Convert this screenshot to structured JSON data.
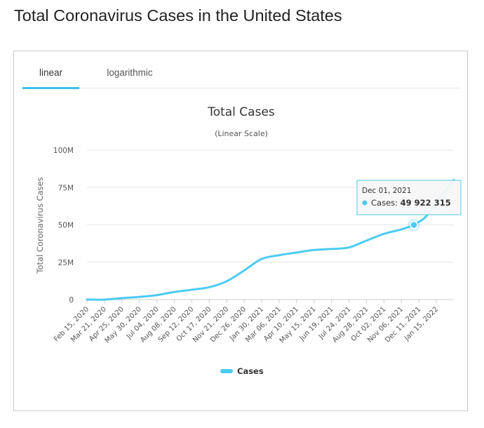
{
  "page": {
    "title": "Total Coronavirus Cases in the United States"
  },
  "tabs": [
    {
      "label": "linear",
      "active": true
    },
    {
      "label": "logarithmic",
      "active": false
    }
  ],
  "colors": {
    "series": "#4ccbf2",
    "tab_accent": "#3ec1ee",
    "grid": "#e6e6e6",
    "tooltip_border": "#4ccbf2"
  },
  "tooltip": {
    "date": "Dec 01, 2021",
    "series": "Cases",
    "value_label": "49 922 315"
  },
  "chart_data": {
    "type": "line",
    "title": "Total Cases",
    "subtitle": "(Linear Scale)",
    "ylabel": "Total Coronavirus Cases",
    "xlabel": "",
    "ylim": [
      0,
      100000000
    ],
    "y_ticks": [
      0,
      25000000,
      50000000,
      75000000,
      100000000
    ],
    "y_tick_labels": [
      "0",
      "25M",
      "50M",
      "75M",
      "100M"
    ],
    "x_range": [
      "2020-02-15",
      "2022-02-19"
    ],
    "x_tick_labels": [
      "Feb 15, 2020",
      "Mar 21, 2020",
      "Apr 25, 2020",
      "May 30, 2020",
      "Jul 04, 2020",
      "Aug 08, 2020",
      "Sep 12, 2020",
      "Oct 17, 2020",
      "Nov 21, 2020",
      "Dec 26, 2020",
      "Jan 30, 2021",
      "Mar 06, 2021",
      "Apr 10, 2021",
      "May 15, 2021",
      "Jun 19, 2021",
      "Jul 24, 2021",
      "Aug 28, 2021",
      "Oct 02, 2021",
      "Nov 06, 2021",
      "Dec 11, 2021",
      "Jan 15, 2022"
    ],
    "grid": true,
    "legend": "bottom-center",
    "highlight": {
      "x": "2021-12-01",
      "y": 49922315
    },
    "series": [
      {
        "name": "Cases",
        "x": [
          "2020-02-15",
          "2020-03-21",
          "2020-04-25",
          "2020-05-30",
          "2020-07-04",
          "2020-08-08",
          "2020-09-12",
          "2020-10-17",
          "2020-11-21",
          "2020-12-26",
          "2021-01-30",
          "2021-03-06",
          "2021-04-10",
          "2021-05-15",
          "2021-06-19",
          "2021-07-24",
          "2021-08-28",
          "2021-10-02",
          "2021-11-06",
          "2021-12-01",
          "2021-12-11",
          "2021-12-25",
          "2022-01-15",
          "2022-02-19"
        ],
        "values": [
          0,
          30000,
          1000000,
          1800000,
          3000000,
          5100000,
          6600000,
          8300000,
          12300000,
          19500000,
          27200000,
          29700000,
          31500000,
          33200000,
          33900000,
          34900000,
          39500000,
          44000000,
          47000000,
          49922315,
          52000000,
          55500000,
          65000000,
          80000000
        ]
      }
    ]
  }
}
